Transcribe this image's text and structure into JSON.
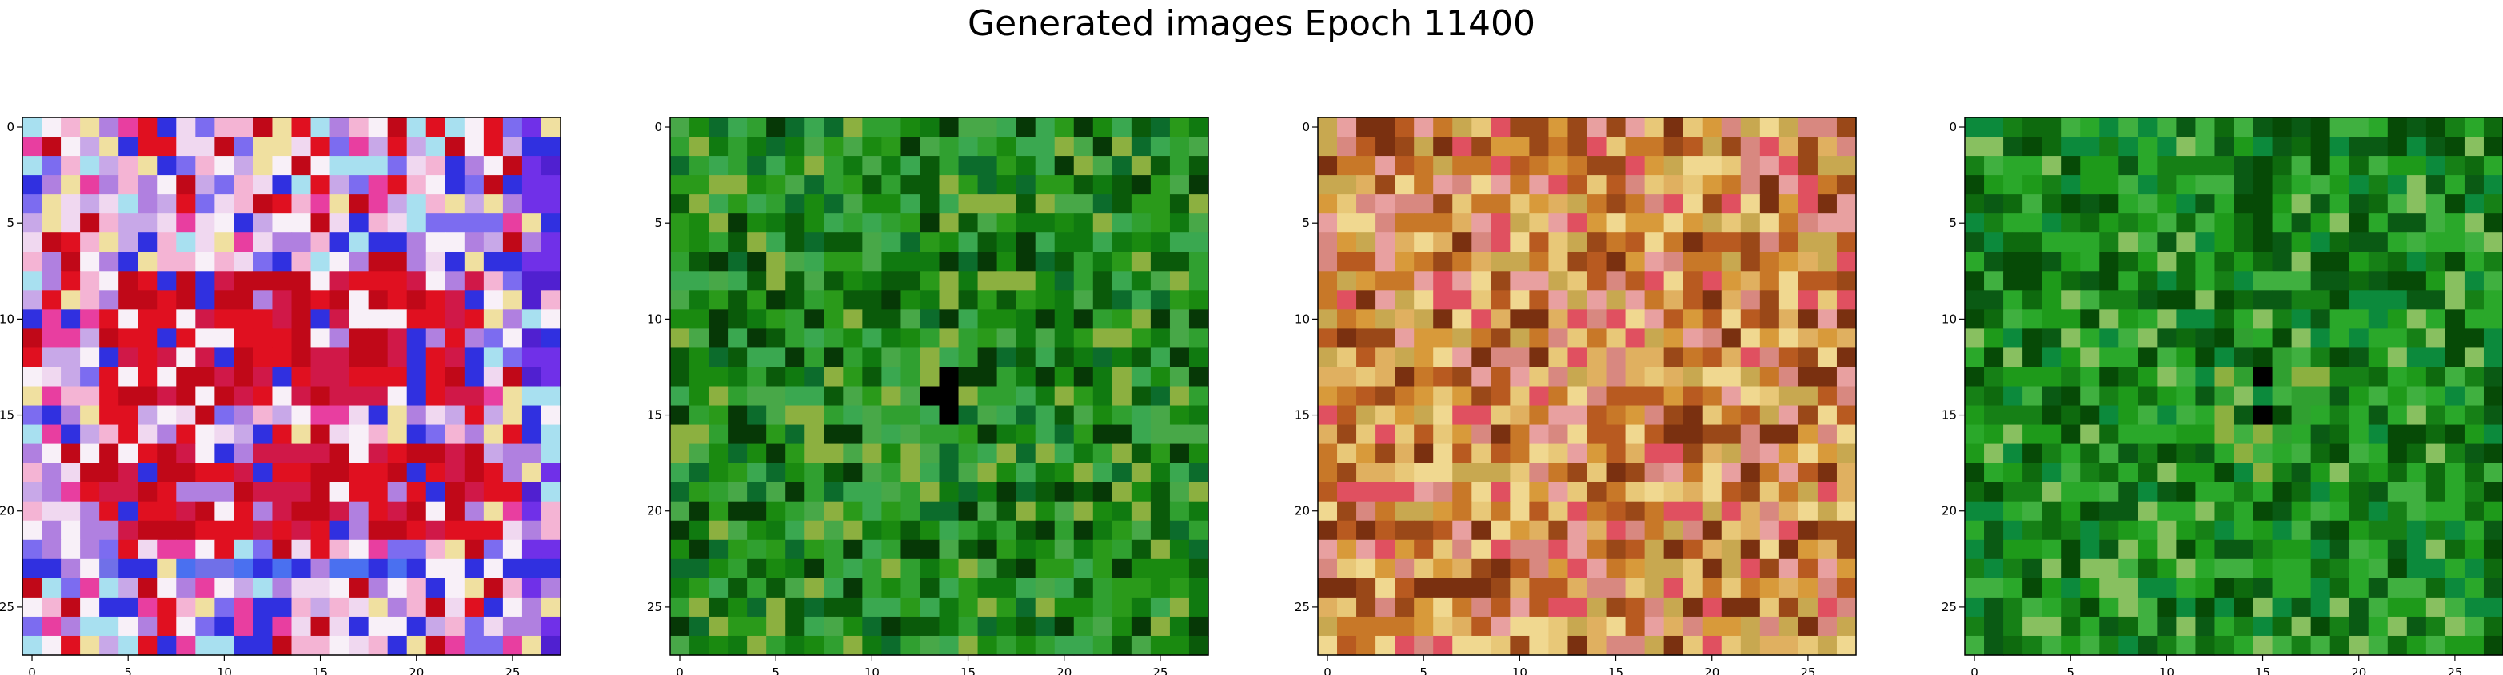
{
  "figure": {
    "title": "Generated images Epoch 11400"
  },
  "colors": {
    "panel_1_palette": [
      "#7c6cf0",
      "#c8a8e8",
      "#f0d8f0",
      "#e83ea0",
      "#e01020",
      "#c00818",
      "#f4b4d4",
      "#a8e0f0",
      "#f0e0a0",
      "#3030e0",
      "#b080e0",
      "#f8f0f8"
    ],
    "panel_2_palette": [
      "#0a5a0a",
      "#107a10",
      "#1a8a10",
      "#2a9a1a",
      "#063806",
      "#30a030",
      "#48a848",
      "#0c6c2c",
      "#3aa850",
      "#8cb040",
      "#000000"
    ],
    "panel_3_palette": [
      "#d89a3a",
      "#c87828",
      "#e0b060",
      "#e8c878",
      "#b85a20",
      "#d88880",
      "#e8a0a0",
      "#9a4818",
      "#f0d890",
      "#c8a850",
      "#e05060",
      "#7a3010"
    ],
    "panel_4_palette": [
      "#0e6a0e",
      "#168016",
      "#1e9a1a",
      "#064a06",
      "#2aa82a",
      "#0a5a14",
      "#40b040",
      "#0c8a3c",
      "#88c060",
      "#000000"
    ]
  },
  "chart_data": [
    {
      "type": "heatmap",
      "xticks": [
        "0",
        "5",
        "10",
        "15",
        "20",
        "25"
      ],
      "yticks": [
        "0",
        "5",
        "10",
        "15",
        "20",
        "25"
      ],
      "xlim": [
        -0.5,
        27.5
      ],
      "ylim": [
        27.5,
        -0.5
      ],
      "grid_size": [
        28,
        28
      ],
      "pattern": "pink-purple image with red horizontal bands near rows 8-14 and 17-21, blue band at row 23"
    },
    {
      "type": "heatmap",
      "xticks": [
        "0",
        "5",
        "10",
        "15",
        "20",
        "25"
      ],
      "yticks": [
        "0",
        "5",
        "10",
        "15",
        "20",
        "25"
      ],
      "xlim": [
        -0.5,
        27.5
      ],
      "ylim": [
        27.5,
        -0.5
      ],
      "grid_size": [
        28,
        28
      ],
      "pattern": "mostly green noise with a dark center"
    },
    {
      "type": "heatmap",
      "xticks": [
        "0",
        "5",
        "10",
        "15",
        "20",
        "25"
      ],
      "yticks": [
        "0",
        "5",
        "10",
        "15",
        "20",
        "25"
      ],
      "xlim": [
        -0.5,
        27.5
      ],
      "ylim": [
        27.5,
        -0.5
      ],
      "grid_size": [
        28,
        28
      ],
      "pattern": "orange-tan noise with pinkish patches"
    },
    {
      "type": "heatmap",
      "xticks": [
        "0",
        "5",
        "10",
        "15",
        "20",
        "25"
      ],
      "yticks": [
        "0",
        "5",
        "10",
        "15",
        "20",
        "25"
      ],
      "xlim": [
        -0.5,
        27.5
      ],
      "ylim": [
        27.5,
        -0.5
      ],
      "grid_size": [
        28,
        28
      ],
      "pattern": "mostly green noise with a dark center"
    }
  ]
}
